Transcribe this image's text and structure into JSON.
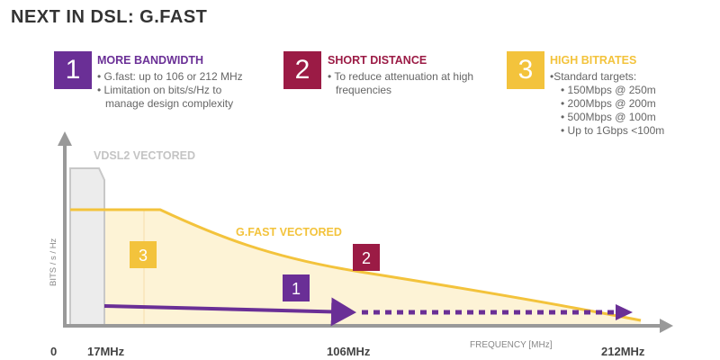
{
  "title": "NEXT IN DSL: G.FAST",
  "features": [
    {
      "number": "1",
      "heading": "MORE BANDWIDTH",
      "color": "#6a2f96",
      "items": [
        "• G.fast: up to 106 or 212 MHz",
        "• Limitation on bits/s/Hz to",
        "  manage design complexity"
      ]
    },
    {
      "number": "2",
      "heading": "SHORT DISTANCE",
      "color": "#9b1b45",
      "items": [
        "• To reduce attenuation at high",
        "  frequencies"
      ]
    },
    {
      "number": "3",
      "heading": "HIGH BITRATES",
      "color": "#f3c33c",
      "items": [
        "•Standard targets:",
        "• 150Mbps @ 250m",
        "• 200Mbps @ 200m",
        "• 500Mbps @ 100m",
        "• Up to 1Gbps <100m"
      ]
    }
  ],
  "chart": {
    "y_axis_label": "BITS / s / Hz",
    "x_axis_label": "FREQUENCY [MHz]",
    "vdsl_label": "VDSL2 VECTORED",
    "gfast_label": "G.FAST VECTORED",
    "ticks": {
      "zero": "0",
      "f17": "17MHz",
      "f106": "106MHz",
      "f212": "212MHz"
    },
    "marker_1": "1",
    "marker_2": "2",
    "marker_3": "3",
    "colors": {
      "gray": "#c8c8c8",
      "yellow": "#f3c33c",
      "purple": "#6a2f96",
      "red": "#9b1b45",
      "fill": "#fdf3d6"
    }
  }
}
